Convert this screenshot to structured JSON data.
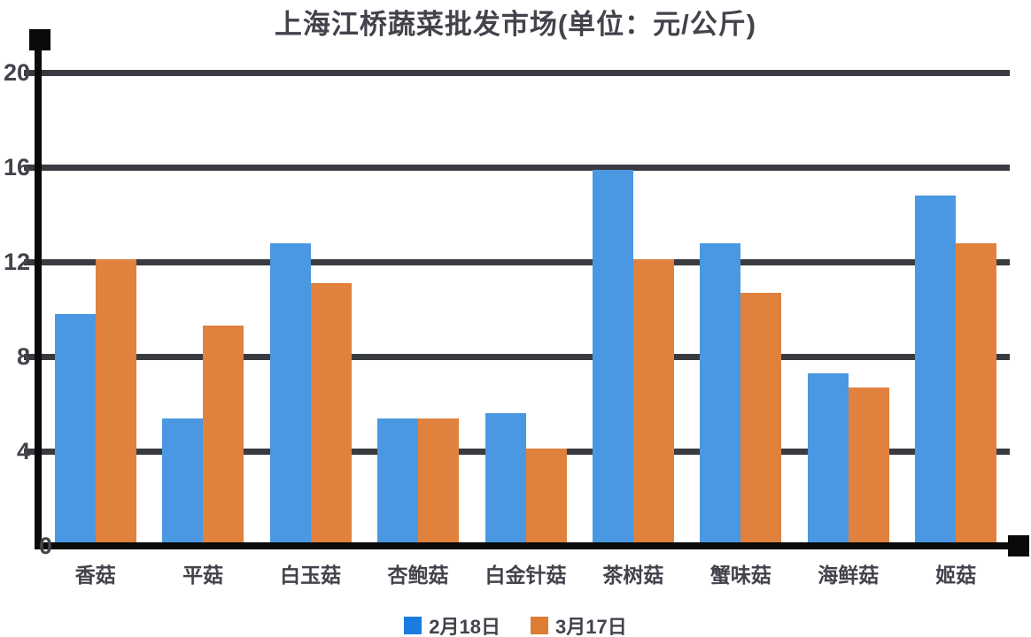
{
  "title": "上海江桥蔬菜批发市场(单位：元/公斤)",
  "colors": {
    "background": "#FFFFFF",
    "axis": "#0A0A0B",
    "gridline": "#3A3B40",
    "text": "#42434B"
  },
  "chart_data": {
    "type": "bar",
    "title": "上海江桥蔬菜批发市场(单位：元/公斤)",
    "categories": [
      "香菇",
      "平菇",
      "白玉菇",
      "杏鲍菇",
      "白金针菇",
      "茶树菇",
      "蟹味菇",
      "海鲜菇",
      "姬菇"
    ],
    "series": [
      {
        "name": "2月18日",
        "color": "#1B7CE0",
        "bar_color": "#4A98E2",
        "values": [
          9.8,
          5.4,
          12.8,
          5.4,
          5.6,
          15.9,
          12.8,
          7.3,
          14.8
        ]
      },
      {
        "name": "3月17日",
        "color": "#DD7D33",
        "bar_color": "#E0813E",
        "values": [
          12.1,
          9.3,
          11.1,
          5.4,
          4.1,
          12.1,
          10.7,
          6.7,
          12.8
        ]
      }
    ],
    "xlabel": "",
    "ylabel": "",
    "ylim": [
      0,
      20
    ],
    "yticks": [
      0,
      4,
      8,
      12,
      16,
      20
    ],
    "grid": true,
    "legend_position": "bottom"
  }
}
